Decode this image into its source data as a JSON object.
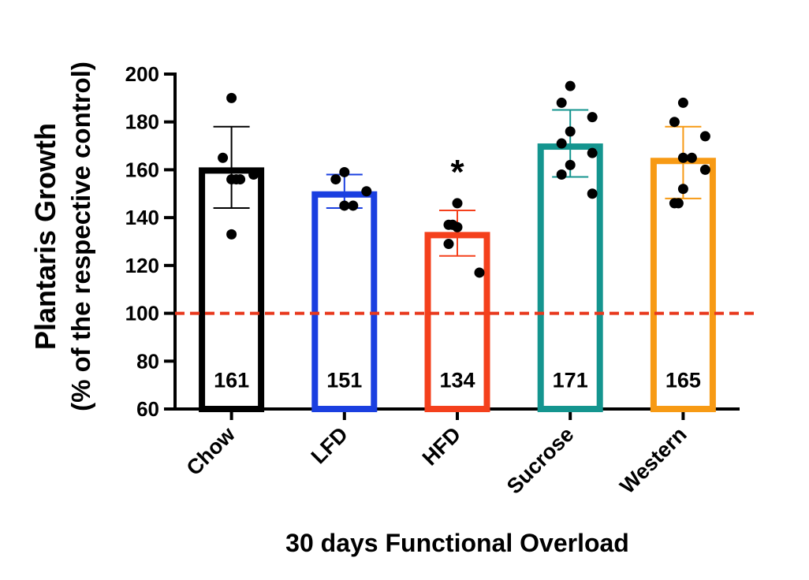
{
  "chart_data": {
    "type": "bar",
    "xlabel": "30 days Functional Overload",
    "ylabel_line1": "Plantaris Growth",
    "ylabel_line2": "(% of the respective control)",
    "ylim": [
      60,
      200
    ],
    "yticks": [
      60,
      80,
      100,
      120,
      140,
      160,
      180,
      200
    ],
    "grid": false,
    "reference_line": {
      "y": 100,
      "color": "#e8381c",
      "style": "dashed"
    },
    "categories": [
      "Chow",
      "LFD",
      "HFD",
      "Sucrose",
      "Western"
    ],
    "bars": [
      {
        "category": "Chow",
        "value": 161,
        "value_label": "161",
        "color": "#000000",
        "error_low": 144,
        "error_high": 178,
        "significance": "",
        "points": [
          190,
          165,
          158,
          156,
          156,
          156,
          133
        ]
      },
      {
        "category": "LFD",
        "value": 151,
        "value_label": "151",
        "color": "#1a3fe0",
        "error_low": 144,
        "error_high": 158,
        "significance": "",
        "points": [
          159,
          156,
          151,
          145,
          145
        ]
      },
      {
        "category": "HFD",
        "value": 134,
        "value_label": "134",
        "color": "#f4401c",
        "error_low": 124,
        "error_high": 143,
        "significance": "*",
        "points": [
          146,
          137,
          137,
          136,
          129,
          117
        ]
      },
      {
        "category": "Sucrose",
        "value": 171,
        "value_label": "171",
        "color": "#14958f",
        "error_low": 157,
        "error_high": 185,
        "significance": "",
        "points": [
          195,
          188,
          182,
          176,
          171,
          167,
          162,
          158,
          150
        ]
      },
      {
        "category": "Western",
        "value": 165,
        "value_label": "165",
        "color": "#f79a14",
        "error_low": 148,
        "error_high": 178,
        "significance": "",
        "points": [
          188,
          180,
          174,
          165,
          165,
          160,
          152,
          146,
          146
        ]
      }
    ]
  }
}
